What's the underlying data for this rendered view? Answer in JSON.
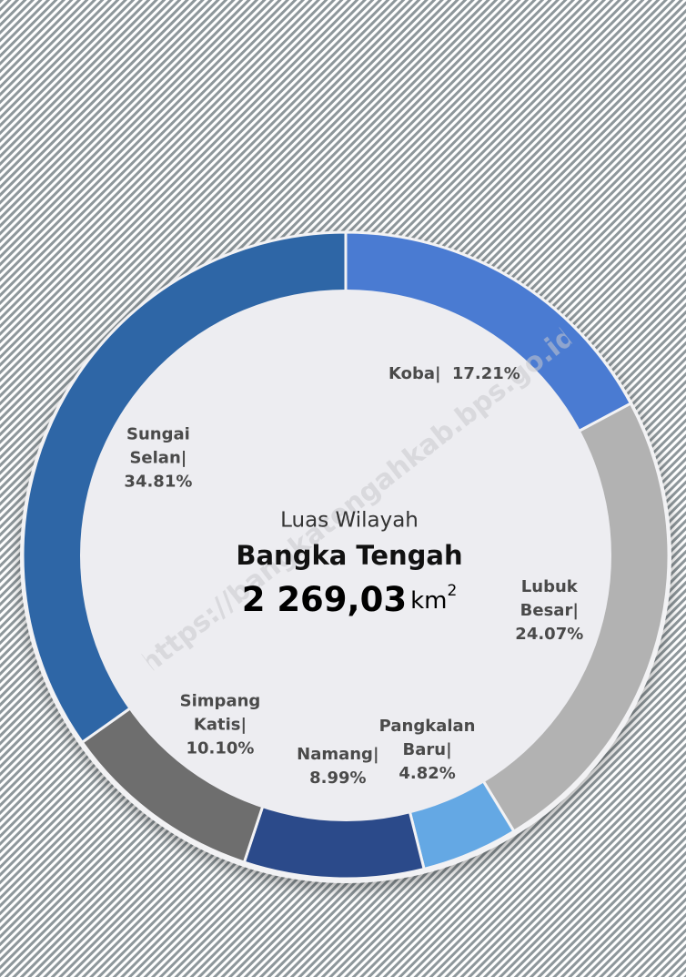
{
  "chart_data": {
    "type": "donut",
    "center_title": "Luas Wilayah",
    "center_name": "Bangka Tengah",
    "center_value": "2 269,03",
    "center_unit": "km",
    "center_unit_power": "2",
    "label_separator": "|",
    "watermark": "https://bangkatengahkab.bps.go.id",
    "categories": [
      "Koba",
      "Lubuk Besar",
      "Pangkalan Baru",
      "Namang",
      "Simpang Katis",
      "Sungai Selan"
    ],
    "values": [
      17.21,
      24.07,
      4.82,
      8.99,
      10.1,
      34.81
    ],
    "value_labels": [
      "17.21%",
      "24.07%",
      "4.82%",
      "8.99%",
      "10.10%",
      "34.81%"
    ],
    "colors": [
      "#4a7bd2",
      "#b2b2b2",
      "#64a8e4",
      "#2b4a8a",
      "#6e6e6e",
      "#2e66a6"
    ]
  }
}
